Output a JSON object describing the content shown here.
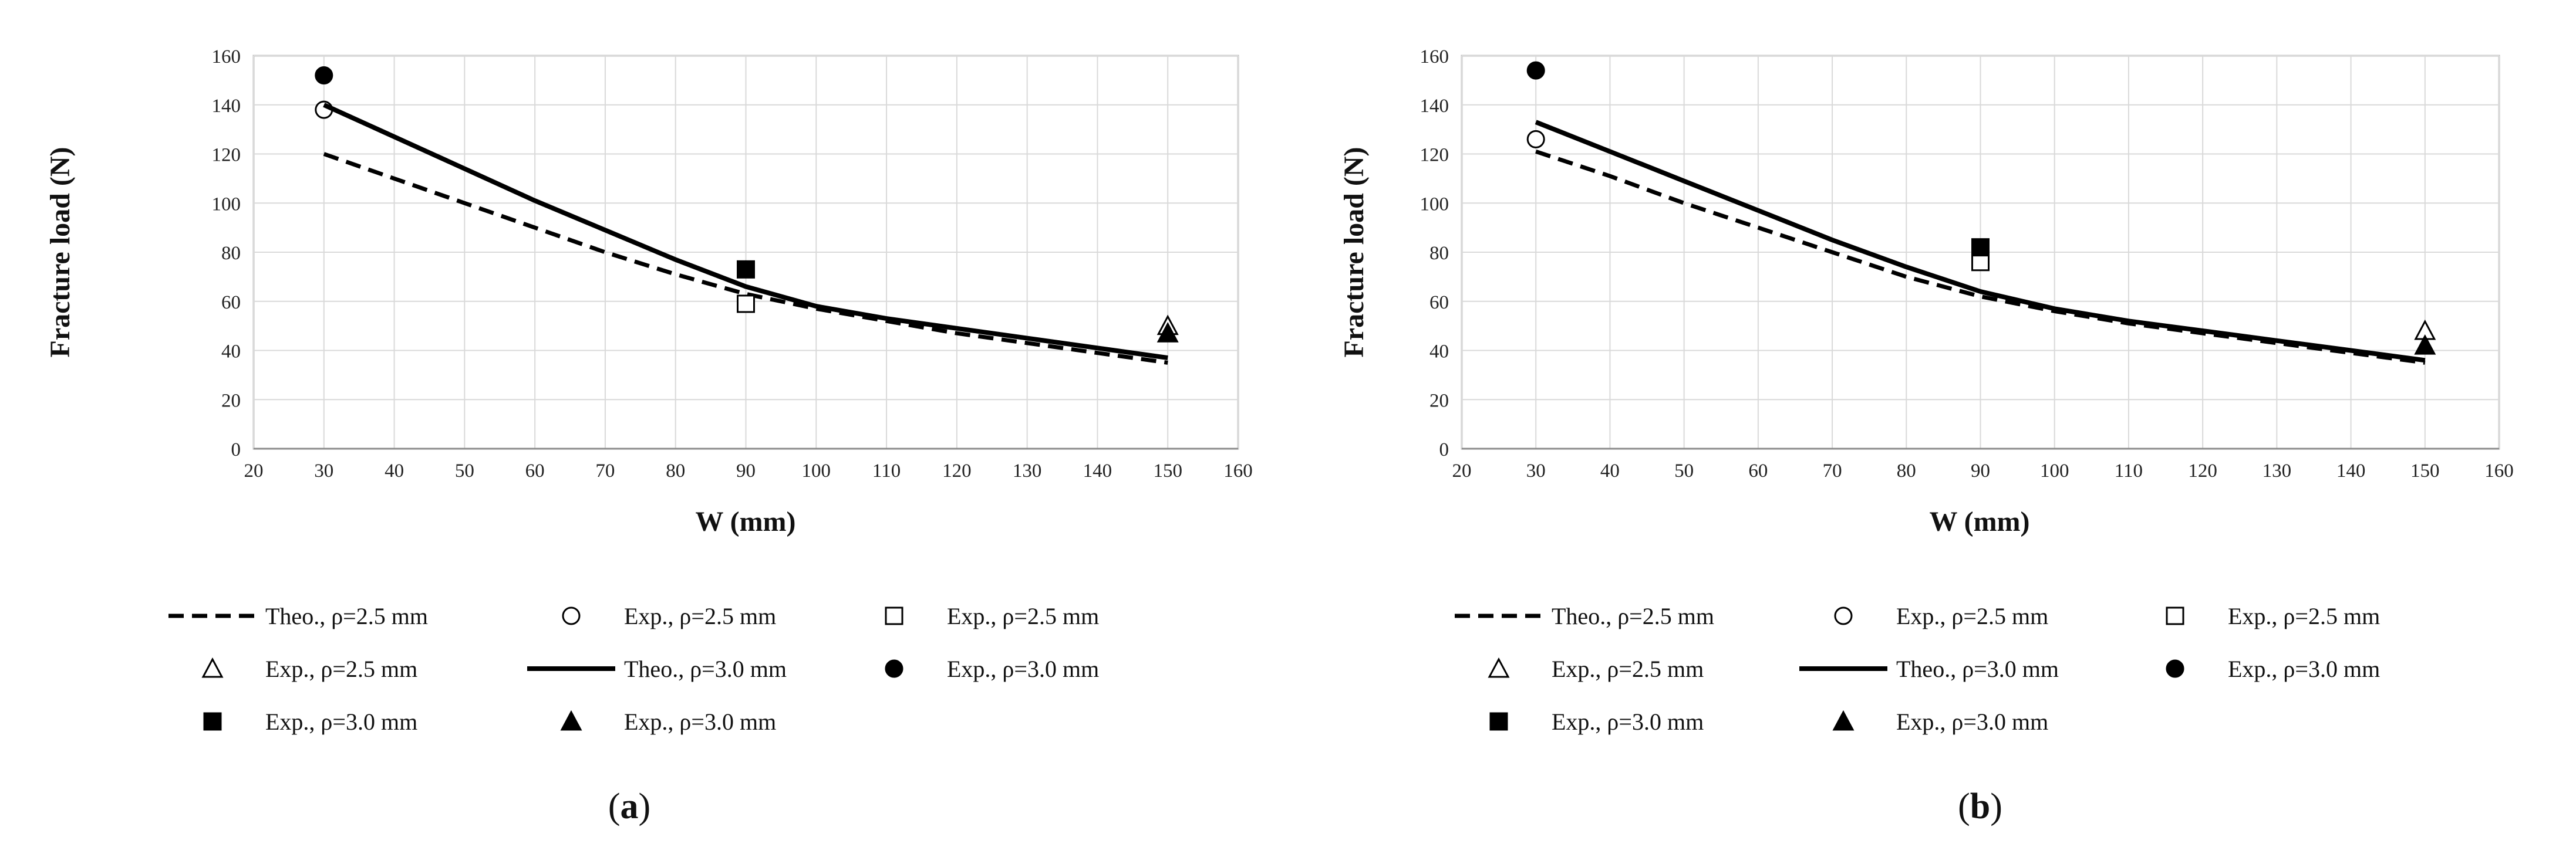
{
  "chart_data": [
    {
      "type": "line",
      "panel_label": "a",
      "xlabel": "W (mm)",
      "ylabel": "Fracture load (N)",
      "xlim": [
        20,
        160
      ],
      "ylim": [
        0,
        160
      ],
      "x_ticks": [
        20,
        30,
        40,
        50,
        60,
        70,
        80,
        90,
        100,
        110,
        120,
        130,
        140,
        150,
        160
      ],
      "y_ticks": [
        0,
        20,
        40,
        60,
        80,
        100,
        120,
        140,
        160
      ],
      "grid": true,
      "legend_position": "bottom",
      "series": [
        {
          "name": "Theo., ρ=2.5 mm",
          "kind": "line",
          "style": "dashed",
          "x": [
            30,
            40,
            50,
            60,
            70,
            80,
            90,
            100,
            110,
            120,
            130,
            140,
            150
          ],
          "y": [
            120,
            110,
            100,
            90,
            80,
            71,
            63,
            57,
            52,
            47,
            43,
            39,
            35
          ]
        },
        {
          "name": "Exp., ρ=2.5 mm",
          "kind": "marker",
          "marker": "circle-open",
          "x": [
            30
          ],
          "y": [
            138
          ]
        },
        {
          "name": "Exp., ρ=2.5 mm",
          "kind": "marker",
          "marker": "square-open",
          "x": [
            90
          ],
          "y": [
            59
          ]
        },
        {
          "name": "Exp., ρ=2.5 mm",
          "kind": "marker",
          "marker": "triangle-open",
          "x": [
            150
          ],
          "y": [
            50
          ]
        },
        {
          "name": "Theo., ρ=3.0 mm",
          "kind": "line",
          "style": "solid",
          "x": [
            30,
            40,
            50,
            60,
            70,
            80,
            90,
            100,
            110,
            120,
            130,
            140,
            150
          ],
          "y": [
            140,
            127,
            114,
            101,
            89,
            77,
            66,
            58,
            53,
            49,
            45,
            41,
            37
          ]
        },
        {
          "name": "Exp., ρ=3.0 mm",
          "kind": "marker",
          "marker": "circle-filled",
          "x": [
            30
          ],
          "y": [
            152
          ]
        },
        {
          "name": "Exp., ρ=3.0 mm",
          "kind": "marker",
          "marker": "square-filled",
          "x": [
            90
          ],
          "y": [
            73
          ]
        },
        {
          "name": "Exp., ρ=3.0 mm",
          "kind": "marker",
          "marker": "triangle-filled",
          "x": [
            150
          ],
          "y": [
            47
          ]
        }
      ]
    },
    {
      "type": "line",
      "panel_label": "b",
      "xlabel": "W (mm)",
      "ylabel": "Fracture load (N)",
      "xlim": [
        20,
        160
      ],
      "ylim": [
        0,
        160
      ],
      "x_ticks": [
        20,
        30,
        40,
        50,
        60,
        70,
        80,
        90,
        100,
        110,
        120,
        130,
        140,
        150,
        160
      ],
      "y_ticks": [
        0,
        20,
        40,
        60,
        80,
        100,
        120,
        140,
        160
      ],
      "grid": true,
      "legend_position": "bottom",
      "series": [
        {
          "name": "Theo., ρ=2.5 mm",
          "kind": "line",
          "style": "dashed",
          "x": [
            30,
            40,
            50,
            60,
            70,
            80,
            90,
            100,
            110,
            120,
            130,
            140,
            150
          ],
          "y": [
            121,
            111,
            100,
            90,
            80,
            70,
            62,
            56,
            51,
            47,
            43,
            39,
            35
          ]
        },
        {
          "name": "Exp., ρ=2.5 mm",
          "kind": "marker",
          "marker": "circle-open",
          "x": [
            30
          ],
          "y": [
            126
          ]
        },
        {
          "name": "Exp., ρ=2.5 mm",
          "kind": "marker",
          "marker": "square-open",
          "x": [
            90
          ],
          "y": [
            76
          ]
        },
        {
          "name": "Exp., ρ=2.5 mm",
          "kind": "marker",
          "marker": "triangle-open",
          "x": [
            150
          ],
          "y": [
            48
          ]
        },
        {
          "name": "Theo., ρ=3.0 mm",
          "kind": "line",
          "style": "solid",
          "x": [
            30,
            40,
            50,
            60,
            70,
            80,
            90,
            100,
            110,
            120,
            130,
            140,
            150
          ],
          "y": [
            133,
            121,
            109,
            97,
            85,
            74,
            64,
            57,
            52,
            48,
            44,
            40,
            36
          ]
        },
        {
          "name": "Exp., ρ=3.0 mm",
          "kind": "marker",
          "marker": "circle-filled",
          "x": [
            30
          ],
          "y": [
            154
          ]
        },
        {
          "name": "Exp., ρ=3.0 mm",
          "kind": "marker",
          "marker": "square-filled",
          "x": [
            90
          ],
          "y": [
            82
          ]
        },
        {
          "name": "Exp., ρ=3.0 mm",
          "kind": "marker",
          "marker": "triangle-filled",
          "x": [
            150
          ],
          "y": [
            42
          ]
        }
      ]
    }
  ]
}
